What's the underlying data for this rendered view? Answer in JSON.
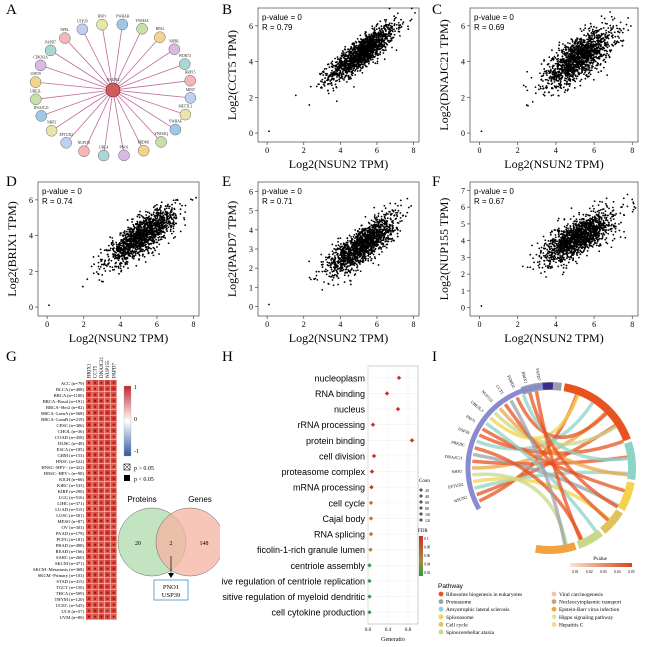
{
  "figure": {
    "panels": [
      "A",
      "B",
      "C",
      "D",
      "E",
      "F",
      "G",
      "H",
      "I"
    ]
  },
  "network": {
    "center": "NSUN2",
    "nodes": [
      "YWHAB",
      "YWHAZ",
      "RPA2",
      "NIPBL",
      "WDR74",
      "RRP15",
      "MINT",
      "METTL3",
      "YWHAE",
      "YWHAQ",
      "PRDM1",
      "PNO1",
      "UBL4",
      "NUP155",
      "EFTUD2",
      "NHP2",
      "DNAJC21",
      "UBE2L",
      "USP39",
      "CDKN2A",
      "PAPD7",
      "NPEL",
      "UTP20",
      "HSP1"
    ]
  },
  "scatter": [
    {
      "panel": "B",
      "p": "p-value = 0",
      "r": "R = 0.79",
      "ylabel": "Log2(CCT5 TPM)",
      "xlabel": "Log2(NSUN2 TPM)",
      "yticks": [
        "0",
        "2",
        "4",
        "6"
      ],
      "xticks": [
        "0",
        "2",
        "4",
        "6",
        "8"
      ]
    },
    {
      "panel": "C",
      "p": "p-value = 0",
      "r": "R = 0.69",
      "ylabel": "Log2(DNAJC21 TPM)",
      "xlabel": "Log2(NSUN2 TPM)",
      "yticks": [
        "0",
        "2",
        "4",
        "6"
      ],
      "xticks": [
        "0",
        "2",
        "4",
        "6",
        "8"
      ]
    },
    {
      "panel": "D",
      "p": "p-value = 0",
      "r": "R = 0.74",
      "ylabel": "Log2(BRIX1 TPM)",
      "xlabel": "Log2(NSUN2 TPM)",
      "yticks": [
        "0",
        "2",
        "4",
        "6"
      ],
      "xticks": [
        "0",
        "2",
        "4",
        "6",
        "8"
      ]
    },
    {
      "panel": "E",
      "p": "p-value = 0",
      "r": "R = 0.71",
      "ylabel": "Log2(PAPD7 TPM)",
      "xlabel": "Log2(NSUN2 TPM)",
      "yticks": [
        "0",
        "1",
        "2",
        "3",
        "4",
        "5",
        "6"
      ],
      "xticks": [
        "0",
        "2",
        "4",
        "6",
        "8"
      ]
    },
    {
      "panel": "F",
      "p": "p-value = 0",
      "r": "R = 0.67",
      "ylabel": "Log2(NUP155 TPM)",
      "xlabel": "Log2(NSUN2 TPM)",
      "yticks": [
        "0",
        "1",
        "2",
        "3",
        "4",
        "5",
        "6",
        "7"
      ],
      "xticks": [
        "0",
        "2",
        "4",
        "6",
        "8"
      ]
    }
  ],
  "heatmap": {
    "columns": [
      "BRIX1",
      "CCT5",
      "DNAJC21",
      "NUP155",
      "PAPD7"
    ],
    "rows": [
      "ACC (n=79)",
      "BLCA (n=408)",
      "BRCA (n=1100)",
      "BRCA−Basal (n=191)",
      "BRCA−Her2 (n=82)",
      "BRCA−LumA (n=568)",
      "BRCA−LumB (n=219)",
      "CESC (n=306)",
      "CHOL (n=36)",
      "COAD (n=458)",
      "DLBC (n=48)",
      "ESCA (n=185)",
      "GBM (n=153)",
      "HNSC (n=522)",
      "HNSC−HPV− (n=422)",
      "HNSC−HPV+ (n=98)",
      "KICH (n=66)",
      "KIRC (n=533)",
      "KIRP (n=290)",
      "LGG (n=516)",
      "LIHC (n=371)",
      "LUAD (n=515)",
      "LUSC (n=501)",
      "MESO (n=87)",
      "OV (n=303)",
      "PAAD (n=179)",
      "PCPG (n=181)",
      "PRAD (n=498)",
      "READ (n=166)",
      "SARC (n=260)",
      "SKCM (n=471)",
      "SKCM−Metastasis (n=368)",
      "SKCM−Primary (n=103)",
      "STAD (n=415)",
      "TGCT (n=150)",
      "THCA (n=509)",
      "THYM (n=120)",
      "UCEC (n=545)",
      "UCS (n=57)",
      "UVM (n=80)"
    ],
    "colorbar_ticks": [
      "1",
      "0",
      "-1"
    ],
    "legend": [
      "p > 0.05",
      "p < 0.05"
    ]
  },
  "venn": {
    "left_label": "Proteins",
    "right_label": "Genes",
    "left_only": "20",
    "overlap": "2",
    "right_only": "148",
    "result": [
      "PNO1",
      "USP39"
    ]
  },
  "chart_data": {
    "type": "scatter",
    "title": "",
    "xlabel": "Generatio",
    "ylabel": "",
    "xticks": [
      "0.0",
      "0.4",
      "0.8"
    ],
    "xlim": [
      0,
      1.0
    ],
    "categories": [
      "nucleoplasm",
      "RNA binding",
      "nucleus",
      "rRNA processing",
      "protein binding",
      "cell division",
      "proteasome complex",
      "mRNA processing",
      "cell cycle",
      "Cajal body",
      "RNA splicing",
      "ficolin-1-rich granule lumen",
      "centriole assembly",
      "positive regulation of centriole replication",
      "positive regulation of myeloid dendritic",
      "cell cytokine production"
    ],
    "values": [
      0.62,
      0.38,
      0.6,
      0.1,
      0.88,
      0.12,
      0.08,
      0.07,
      0.06,
      0.06,
      0.06,
      0.05,
      0.03,
      0.03,
      0.03,
      0.03
    ],
    "legend_count_title": "Count",
    "legend_count_ticks": [
      "20",
      "40",
      "60",
      "80",
      "100",
      "120"
    ],
    "legend_fdr_title": "FDR",
    "legend_fdr_ticks": [
      "0.1",
      "0.08",
      "0.06",
      "0.04",
      "0.02"
    ]
  },
  "chord": {
    "genes": [
      "NSUN2",
      "EFTUD2",
      "NHP2",
      "DNAJC21",
      "PRKDC",
      "USP39",
      "PNO1",
      "UBE2L3",
      "NUP155",
      "CCT5",
      "PSMD2",
      "BRIX1",
      "PAPD7"
    ],
    "pvalue_label": "Pvalue",
    "pvalue_ticks": [
      "0.01",
      "0.02",
      "0.03",
      "0.04",
      "0.05"
    ],
    "pathway_title": "Pathway",
    "pathways_left": [
      "Ribosome biogenesis in eukaryotes",
      "Proteasome",
      "Amyotrophic lateral sclerosis",
      "Spliceosome",
      "Cell cycle",
      "Spinocerebellar ataxia"
    ],
    "pathways_right": [
      "Viral carcinogenesis",
      "Nucleocytoplasmic transport",
      "Epstein-Barr virus infection",
      "Hippo signaling pathway",
      "Hepatitis C"
    ],
    "colors_left": [
      "#e8531f",
      "#9aa1a8",
      "#8ed3c7",
      "#f3d34a",
      "#e0c35a",
      "#c8d88a"
    ],
    "colors_right": [
      "#f7bfa8",
      "#c6a07a",
      "#f2a340",
      "#e6e0a0",
      "#ffd58a"
    ]
  }
}
